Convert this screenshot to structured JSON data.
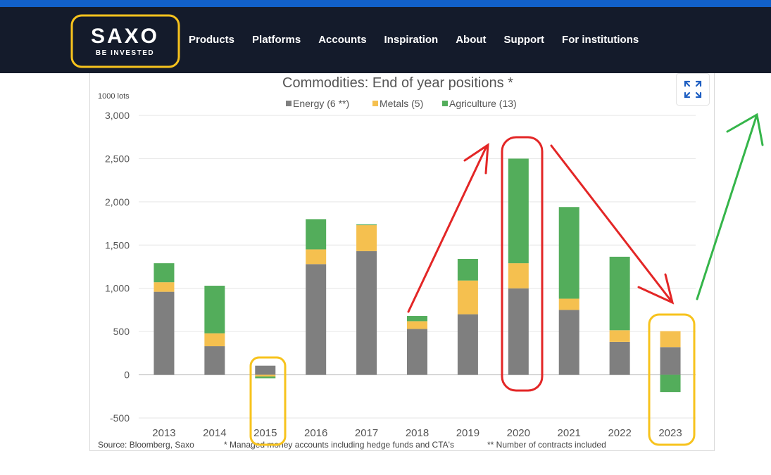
{
  "header": {
    "logo_word": "SAXO",
    "logo_tagline": "BE INVESTED",
    "nav": [
      "Products",
      "Platforms",
      "Accounts",
      "Inspiration",
      "About",
      "Support",
      "For institutions"
    ]
  },
  "colors": {
    "brand_bar": "#1160c9",
    "navbar_bg": "#141b2b",
    "energy": "#7f7f7f",
    "metals": "#f5c04f",
    "agriculture": "#53ad5b",
    "annotation_red": "#e32626",
    "annotation_yellow": "#f7c31d",
    "annotation_green": "#35b54a",
    "expand_icon": "#1f5fc2"
  },
  "expand_button": {
    "icon": "expand-icon"
  },
  "chart_data": {
    "type": "bar",
    "stacked": true,
    "title": "Commodities: End of year positions *",
    "ylabel": "1000 lots",
    "categories": [
      "2013",
      "2014",
      "2015",
      "2016",
      "2017",
      "2018",
      "2019",
      "2020",
      "2021",
      "2022",
      "2023"
    ],
    "series": [
      {
        "name": "Energy (6 **)",
        "color": "#7f7f7f",
        "values": [
          960,
          330,
          105,
          1280,
          1430,
          530,
          700,
          1000,
          750,
          380,
          320
        ]
      },
      {
        "name": "Metals (5)",
        "color": "#f5c04f",
        "values": [
          110,
          150,
          -20,
          170,
          300,
          90,
          390,
          290,
          130,
          135,
          185
        ]
      },
      {
        "name": "Agriculture (13)",
        "color": "#53ad5b",
        "values": [
          220,
          550,
          -20,
          350,
          10,
          60,
          250,
          1210,
          1060,
          850,
          -200
        ]
      }
    ],
    "ylim": [
      -500,
      3000
    ],
    "yticks": [
      -500,
      0,
      500,
      1000,
      1500,
      2000,
      2500,
      3000
    ],
    "ytick_labels": [
      "-500",
      "0",
      "500",
      "1,000",
      "1,500",
      "2,000",
      "2,500",
      "3,000"
    ],
    "legend_position": "top-center",
    "grid": true,
    "source": "Source: Bloomberg, Saxo",
    "footnote_1": "* Managed money accounts including hedge funds and CTA's",
    "footnote_2": "** Number of contracts included"
  }
}
